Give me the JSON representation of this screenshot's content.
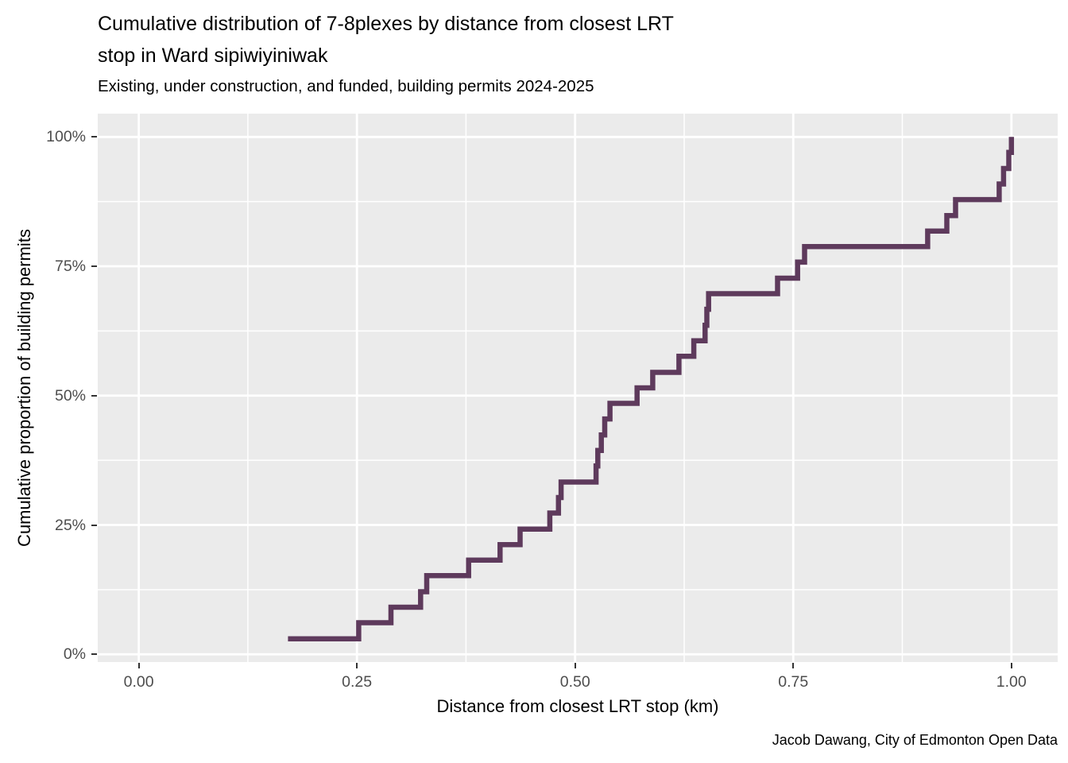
{
  "header": {
    "title": "Cumulative distribution of 7-8plexes by distance from closest LRT stop in Ward sipiwiyiniwak",
    "subtitle": "Existing, under construction, and funded, building permits 2024-2025",
    "caption": "Jacob Dawang, City of Edmonton Open Data"
  },
  "chart_data": {
    "type": "line",
    "subtype": "ecdf-step",
    "title": "Cumulative distribution of 7-8plexes by distance from closest LRT stop in Ward sipiwiyiniwak",
    "subtitle": "Existing, under construction, and funded, building permits 2024-2025",
    "caption": "Jacob Dawang, City of Edmonton Open Data",
    "xlabel": "Distance from closest LRT stop (km)",
    "ylabel": "Cumulative proportion of building permits",
    "legend": "none",
    "grid": true,
    "xlim": [
      -0.047,
      1.053
    ],
    "ylim": [
      -1.5,
      104.5
    ],
    "x_ticks": [
      {
        "value": 0.0,
        "label": "0.00"
      },
      {
        "value": 0.25,
        "label": "0.25"
      },
      {
        "value": 0.5,
        "label": "0.50"
      },
      {
        "value": 0.75,
        "label": "0.75"
      },
      {
        "value": 1.0,
        "label": "1.00"
      }
    ],
    "y_ticks": [
      {
        "value": 0,
        "label": "0%"
      },
      {
        "value": 25,
        "label": "25%"
      },
      {
        "value": 50,
        "label": "50%"
      },
      {
        "value": 75,
        "label": "75%"
      },
      {
        "value": 100,
        "label": "100%"
      }
    ],
    "x_minor": [
      0.125,
      0.375,
      0.625,
      0.875
    ],
    "y_minor": [
      12.5,
      37.5,
      62.5,
      87.5
    ],
    "n_observations": 33,
    "points_note": "ECDF step points: [distance_km, cumulative_percent]",
    "points": [
      [
        0.171,
        3.0
      ],
      [
        0.252,
        6.1
      ],
      [
        0.289,
        9.1
      ],
      [
        0.323,
        12.1
      ],
      [
        0.33,
        15.2
      ],
      [
        0.378,
        18.2
      ],
      [
        0.414,
        21.2
      ],
      [
        0.437,
        24.2
      ],
      [
        0.471,
        27.3
      ],
      [
        0.481,
        30.3
      ],
      [
        0.484,
        33.3
      ],
      [
        0.524,
        36.4
      ],
      [
        0.526,
        39.4
      ],
      [
        0.53,
        42.4
      ],
      [
        0.534,
        45.5
      ],
      [
        0.54,
        48.5
      ],
      [
        0.571,
        51.5
      ],
      [
        0.589,
        54.5
      ],
      [
        0.619,
        57.6
      ],
      [
        0.636,
        60.6
      ],
      [
        0.649,
        63.6
      ],
      [
        0.651,
        66.7
      ],
      [
        0.653,
        69.7
      ],
      [
        0.732,
        72.7
      ],
      [
        0.755,
        75.8
      ],
      [
        0.763,
        78.8
      ],
      [
        0.904,
        81.8
      ],
      [
        0.926,
        84.8
      ],
      [
        0.936,
        87.9
      ],
      [
        0.986,
        90.9
      ],
      [
        0.991,
        93.9
      ],
      [
        0.997,
        97.0
      ],
      [
        1.0,
        100.0
      ]
    ],
    "colors": {
      "line": "#5E3A5C",
      "panel_bg": "#EBEBEB",
      "gridline": "#FFFFFF",
      "tick_label": "#4D4D4D",
      "tick_mark": "#333333",
      "text": "#000000"
    }
  }
}
